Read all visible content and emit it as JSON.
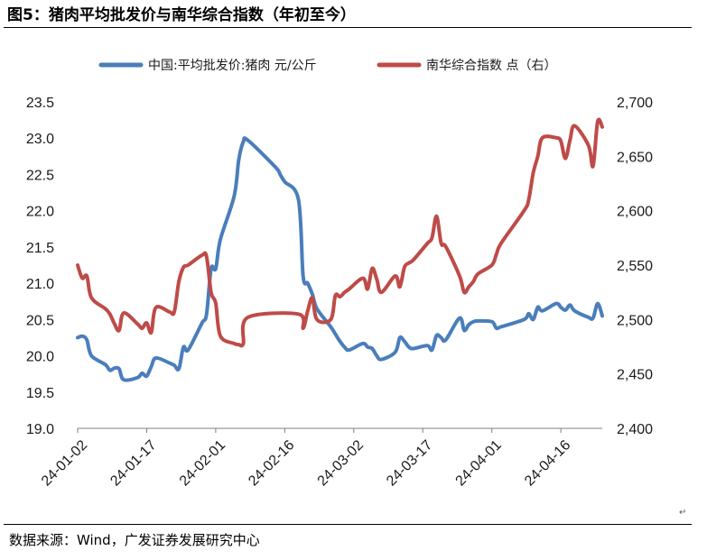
{
  "figure": {
    "title": "图5：猪肉平均批发价与南华综合指数（年初至今）",
    "source": "数据来源：Wind，广发证券发展研究中心",
    "paragraph_mark": "↵"
  },
  "chart_data": {
    "type": "line",
    "title": "",
    "colors": {
      "pork": "#4a7ebb",
      "nanhua": "#be4b48",
      "axis": "#808080"
    },
    "x_ticks": [
      "24-01-02",
      "24-01-17",
      "24-02-01",
      "24-02-16",
      "24-03-02",
      "24-03-17",
      "24-04-01",
      "24-04-16"
    ],
    "left_axis": {
      "min": 19.0,
      "max": 23.5,
      "step": 0.5,
      "ticks": [
        "19.0",
        "19.5",
        "20.0",
        "20.5",
        "21.0",
        "21.5",
        "22.0",
        "22.5",
        "23.0",
        "23.5"
      ]
    },
    "right_axis": {
      "min": 2400,
      "max": 2700,
      "step": 50,
      "ticks": [
        "2,400",
        "2,450",
        "2,500",
        "2,550",
        "2,600",
        "2,650",
        "2,700"
      ]
    },
    "series": [
      {
        "name": "中国:平均批发价:猪肉 元/公斤",
        "axis": "left",
        "points": [
          [
            "2024-01-02",
            20.25
          ],
          [
            "2024-01-03",
            20.27
          ],
          [
            "2024-01-04",
            20.22
          ],
          [
            "2024-01-05",
            20.0
          ],
          [
            "2024-01-08",
            19.88
          ],
          [
            "2024-01-09",
            19.8
          ],
          [
            "2024-01-10",
            19.83
          ],
          [
            "2024-01-11",
            19.82
          ],
          [
            "2024-01-12",
            19.67
          ],
          [
            "2024-01-15",
            19.7
          ],
          [
            "2024-01-16",
            19.76
          ],
          [
            "2024-01-17",
            19.72
          ],
          [
            "2024-01-18",
            19.85
          ],
          [
            "2024-01-19",
            19.97
          ],
          [
            "2024-01-22",
            19.9
          ],
          [
            "2024-01-23",
            19.87
          ],
          [
            "2024-01-24",
            19.82
          ],
          [
            "2024-01-25",
            20.12
          ],
          [
            "2024-01-26",
            20.08
          ],
          [
            "2024-01-29",
            20.45
          ],
          [
            "2024-01-30",
            20.57
          ],
          [
            "2024-01-31",
            21.2
          ],
          [
            "2024-02-01",
            21.2
          ],
          [
            "2024-02-02",
            21.6
          ],
          [
            "2024-02-05",
            22.2
          ],
          [
            "2024-02-06",
            22.7
          ],
          [
            "2024-02-07",
            22.95
          ],
          [
            "2024-02-08",
            22.97
          ],
          [
            "2024-02-14",
            22.6
          ],
          [
            "2024-02-15",
            22.5
          ],
          [
            "2024-02-16",
            22.4
          ],
          [
            "2024-02-19",
            22.15
          ],
          [
            "2024-02-20",
            21.1
          ],
          [
            "2024-02-21",
            21.0
          ],
          [
            "2024-02-22",
            20.85
          ],
          [
            "2024-02-23",
            20.65
          ],
          [
            "2024-02-26",
            20.4
          ],
          [
            "2024-02-27",
            20.3
          ],
          [
            "2024-02-28",
            20.2
          ],
          [
            "2024-02-29",
            20.12
          ],
          [
            "2024-03-01",
            20.08
          ],
          [
            "2024-03-04",
            20.17
          ],
          [
            "2024-03-05",
            20.12
          ],
          [
            "2024-03-06",
            20.1
          ],
          [
            "2024-03-07",
            20.0
          ],
          [
            "2024-03-08",
            19.95
          ],
          [
            "2024-03-11",
            20.05
          ],
          [
            "2024-03-12",
            20.25
          ],
          [
            "2024-03-13",
            20.2
          ],
          [
            "2024-03-14",
            20.12
          ],
          [
            "2024-03-15",
            20.1
          ],
          [
            "2024-03-18",
            20.14
          ],
          [
            "2024-03-19",
            20.08
          ],
          [
            "2024-03-20",
            20.28
          ],
          [
            "2024-03-21",
            20.25
          ],
          [
            "2024-03-22",
            20.22
          ],
          [
            "2024-03-25",
            20.52
          ],
          [
            "2024-03-26",
            20.35
          ],
          [
            "2024-03-27",
            20.43
          ],
          [
            "2024-03-28",
            20.47
          ],
          [
            "2024-03-29",
            20.48
          ],
          [
            "2024-04-01",
            20.47
          ],
          [
            "2024-04-02",
            20.38
          ],
          [
            "2024-04-03",
            20.4
          ],
          [
            "2024-04-08",
            20.5
          ],
          [
            "2024-04-09",
            20.58
          ],
          [
            "2024-04-10",
            20.5
          ],
          [
            "2024-04-11",
            20.67
          ],
          [
            "2024-04-12",
            20.62
          ],
          [
            "2024-04-15",
            20.72
          ],
          [
            "2024-04-16",
            20.67
          ],
          [
            "2024-04-17",
            20.63
          ],
          [
            "2024-04-18",
            20.7
          ],
          [
            "2024-04-19",
            20.62
          ],
          [
            "2024-04-22",
            20.53
          ],
          [
            "2024-04-23",
            20.52
          ],
          [
            "2024-04-24",
            20.72
          ],
          [
            "2024-04-25",
            20.55
          ]
        ]
      },
      {
        "name": "南华综合指数 点（右）",
        "axis": "right",
        "points": [
          [
            "2024-01-02",
            2550
          ],
          [
            "2024-01-03",
            2538
          ],
          [
            "2024-01-04",
            2540
          ],
          [
            "2024-01-05",
            2520
          ],
          [
            "2024-01-08",
            2510
          ],
          [
            "2024-01-09",
            2505
          ],
          [
            "2024-01-10",
            2496
          ],
          [
            "2024-01-11",
            2490
          ],
          [
            "2024-01-12",
            2506
          ],
          [
            "2024-01-15",
            2496
          ],
          [
            "2024-01-16",
            2492
          ],
          [
            "2024-01-17",
            2497
          ],
          [
            "2024-01-18",
            2488
          ],
          [
            "2024-01-19",
            2511
          ],
          [
            "2024-01-22",
            2507
          ],
          [
            "2024-01-23",
            2507
          ],
          [
            "2024-01-24",
            2535
          ],
          [
            "2024-01-25",
            2548
          ],
          [
            "2024-01-26",
            2550
          ],
          [
            "2024-01-29",
            2559
          ],
          [
            "2024-01-30",
            2558
          ],
          [
            "2024-01-31",
            2525
          ],
          [
            "2024-02-01",
            2515
          ],
          [
            "2024-02-02",
            2485
          ],
          [
            "2024-02-05",
            2478
          ],
          [
            "2024-02-06",
            2477
          ],
          [
            "2024-02-07",
            2478
          ],
          [
            "2024-02-08",
            2502
          ],
          [
            "2024-02-19",
            2505
          ],
          [
            "2024-02-20",
            2492
          ],
          [
            "2024-02-21",
            2508
          ],
          [
            "2024-02-22",
            2520
          ],
          [
            "2024-02-23",
            2500
          ],
          [
            "2024-02-26",
            2500
          ],
          [
            "2024-02-27",
            2522
          ],
          [
            "2024-02-28",
            2521
          ],
          [
            "2024-02-29",
            2525
          ],
          [
            "2024-03-01",
            2528
          ],
          [
            "2024-03-04",
            2538
          ],
          [
            "2024-03-05",
            2528
          ],
          [
            "2024-03-06",
            2547
          ],
          [
            "2024-03-07",
            2537
          ],
          [
            "2024-03-08",
            2525
          ],
          [
            "2024-03-11",
            2540
          ],
          [
            "2024-03-12",
            2530
          ],
          [
            "2024-03-13",
            2548
          ],
          [
            "2024-03-14",
            2552
          ],
          [
            "2024-03-15",
            2555
          ],
          [
            "2024-03-18",
            2570
          ],
          [
            "2024-03-19",
            2575
          ],
          [
            "2024-03-20",
            2595
          ],
          [
            "2024-03-21",
            2570
          ],
          [
            "2024-03-22",
            2567
          ],
          [
            "2024-03-25",
            2540
          ],
          [
            "2024-03-26",
            2525
          ],
          [
            "2024-03-27",
            2530
          ],
          [
            "2024-03-28",
            2535
          ],
          [
            "2024-03-29",
            2542
          ],
          [
            "2024-04-01",
            2550
          ],
          [
            "2024-04-02",
            2560
          ],
          [
            "2024-04-03",
            2570
          ],
          [
            "2024-04-08",
            2600
          ],
          [
            "2024-04-09",
            2610
          ],
          [
            "2024-04-10",
            2635
          ],
          [
            "2024-04-11",
            2650
          ],
          [
            "2024-04-12",
            2667
          ],
          [
            "2024-04-15",
            2667
          ],
          [
            "2024-04-16",
            2664
          ],
          [
            "2024-04-17",
            2648
          ],
          [
            "2024-04-18",
            2665
          ],
          [
            "2024-04-19",
            2678
          ],
          [
            "2024-04-22",
            2660
          ],
          [
            "2024-04-23",
            2641
          ],
          [
            "2024-04-24",
            2682
          ],
          [
            "2024-04-25",
            2677
          ]
        ]
      }
    ],
    "legend_position": "top",
    "grid": false
  }
}
